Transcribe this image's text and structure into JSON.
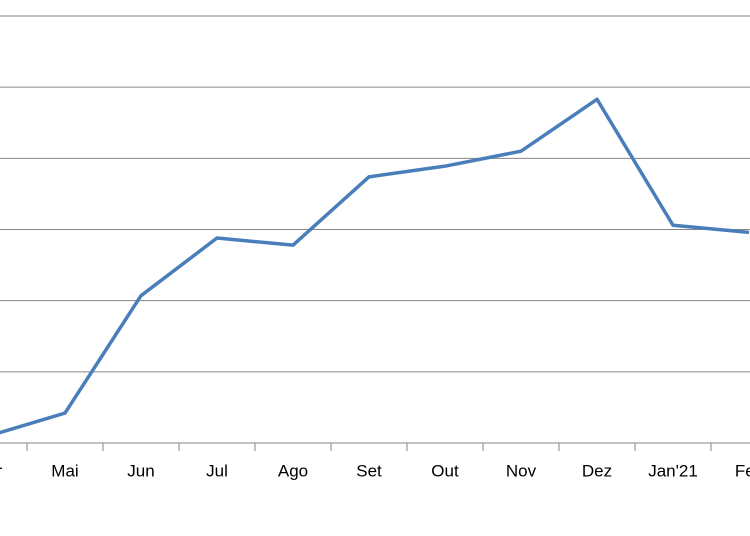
{
  "chart_data": {
    "type": "line",
    "categories": [
      "Abr",
      "Mai",
      "Jun",
      "Jul",
      "Ago",
      "Set",
      "Out",
      "Nov",
      "Dez",
      "Jan'21",
      "Fev"
    ],
    "series": [
      {
        "color": "#4a7ebb",
        "values": [
          0.1,
          0.42,
          2.07,
          2.88,
          2.78,
          3.74,
          3.89,
          4.1,
          4.83,
          3.06,
          2.96
        ]
      }
    ],
    "ylim": [
      0,
      6
    ],
    "yticks": [
      0,
      1,
      2,
      3,
      4,
      5,
      6
    ],
    "grid": true
  }
}
